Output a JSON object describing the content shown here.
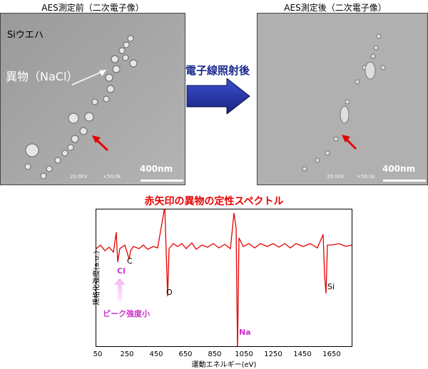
{
  "sem": {
    "left_caption": "AES測定前（二次電子像）",
    "right_caption": "AES測定後（二次電子像）",
    "sample_label": "Siウエハ",
    "particle_label": "異物（NaCl）",
    "scale_bar": "400nm",
    "meta_kv": "20.0kV",
    "meta_mag": "×50.0k",
    "arrow_label": "電子線照射後"
  },
  "spectrum": {
    "title": "赤矢印の異物の定性スペクトル",
    "ylabel": "規格化強度(a.u.)",
    "xlabel": "運動エネルギー(eV)",
    "ticks": [
      "50",
      "250",
      "450",
      "650",
      "850",
      "1050",
      "1250",
      "1450",
      "1650"
    ],
    "annotations": {
      "c": "C",
      "o": "O",
      "si": "Si",
      "cl": "Cl",
      "na": "Na",
      "weak": "ピーク強度小"
    },
    "colors": {
      "line": "#e60000",
      "cl": "#cc33cc",
      "arrow": "#f0a0f0"
    }
  }
}
